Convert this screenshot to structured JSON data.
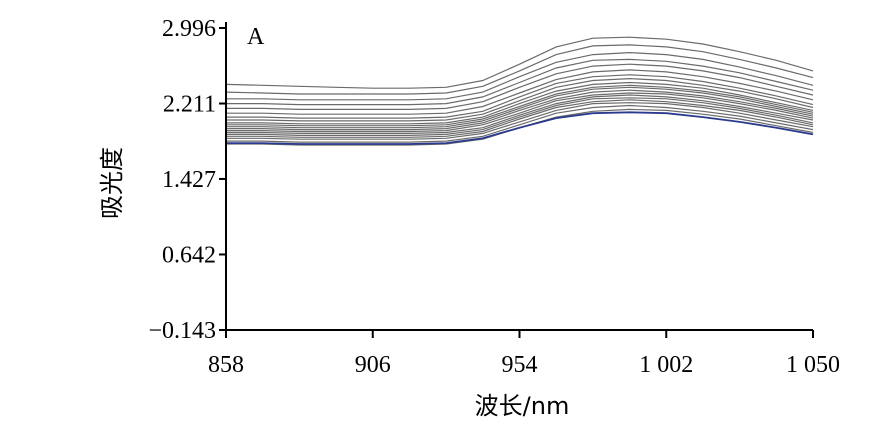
{
  "chart_data": {
    "type": "line",
    "panel_label": "A",
    "xlabel": "波长/nm",
    "ylabel": "吸光度",
    "xlim": [
      858,
      1050
    ],
    "ylim": [
      -0.143,
      2.996
    ],
    "x_ticks": [
      858,
      906,
      954,
      1002,
      1050
    ],
    "x_tick_labels": [
      "858",
      "906",
      "954",
      "1 002",
      "1 050"
    ],
    "y_ticks": [
      -0.143,
      0.642,
      1.427,
      2.211,
      2.996
    ],
    "y_tick_labels": [
      "−0.143",
      "0.642",
      "1.427",
      "2.211",
      "2.996"
    ],
    "grid": false,
    "colors": {
      "spectra": "#6b6b6b",
      "highlight": "#2b3a8f",
      "axis": "#000000"
    },
    "x": [
      858,
      870,
      882,
      894,
      906,
      918,
      930,
      942,
      954,
      966,
      978,
      990,
      1002,
      1014,
      1026,
      1038,
      1050
    ],
    "series": [
      {
        "values": [
          2.41,
          2.4,
          2.39,
          2.38,
          2.37,
          2.37,
          2.38,
          2.45,
          2.62,
          2.8,
          2.89,
          2.9,
          2.88,
          2.83,
          2.75,
          2.66,
          2.55
        ]
      },
      {
        "values": [
          2.33,
          2.32,
          2.31,
          2.31,
          2.31,
          2.31,
          2.32,
          2.39,
          2.55,
          2.72,
          2.81,
          2.82,
          2.8,
          2.75,
          2.67,
          2.58,
          2.48
        ]
      },
      {
        "values": [
          2.26,
          2.26,
          2.25,
          2.25,
          2.25,
          2.25,
          2.26,
          2.33,
          2.49,
          2.64,
          2.72,
          2.74,
          2.72,
          2.67,
          2.59,
          2.5,
          2.4
        ]
      },
      {
        "values": [
          2.21,
          2.21,
          2.2,
          2.2,
          2.2,
          2.2,
          2.21,
          2.28,
          2.43,
          2.58,
          2.66,
          2.67,
          2.65,
          2.6,
          2.53,
          2.44,
          2.35
        ]
      },
      {
        "values": [
          2.16,
          2.16,
          2.15,
          2.15,
          2.15,
          2.15,
          2.16,
          2.23,
          2.38,
          2.52,
          2.6,
          2.62,
          2.6,
          2.55,
          2.48,
          2.39,
          2.3
        ]
      },
      {
        "values": [
          2.11,
          2.11,
          2.1,
          2.1,
          2.1,
          2.1,
          2.11,
          2.18,
          2.32,
          2.46,
          2.54,
          2.56,
          2.54,
          2.49,
          2.42,
          2.34,
          2.25
        ]
      },
      {
        "values": [
          2.07,
          2.07,
          2.06,
          2.06,
          2.06,
          2.06,
          2.07,
          2.13,
          2.28,
          2.42,
          2.49,
          2.51,
          2.49,
          2.44,
          2.37,
          2.29,
          2.2
        ]
      },
      {
        "values": [
          2.04,
          2.04,
          2.03,
          2.03,
          2.03,
          2.03,
          2.04,
          2.1,
          2.24,
          2.38,
          2.45,
          2.47,
          2.45,
          2.4,
          2.34,
          2.26,
          2.17
        ]
      },
      {
        "values": [
          2.01,
          2.01,
          2.0,
          2.0,
          2.0,
          2.0,
          2.01,
          2.07,
          2.21,
          2.34,
          2.41,
          2.43,
          2.41,
          2.37,
          2.3,
          2.22,
          2.14
        ]
      },
      {
        "values": [
          1.99,
          1.99,
          1.98,
          1.98,
          1.98,
          1.98,
          1.99,
          2.05,
          2.18,
          2.31,
          2.38,
          2.4,
          2.38,
          2.34,
          2.28,
          2.2,
          2.12
        ]
      },
      {
        "values": [
          1.97,
          1.97,
          1.96,
          1.96,
          1.96,
          1.96,
          1.97,
          2.03,
          2.16,
          2.29,
          2.36,
          2.38,
          2.36,
          2.32,
          2.26,
          2.18,
          2.1
        ]
      },
      {
        "values": [
          1.95,
          1.95,
          1.94,
          1.94,
          1.94,
          1.94,
          1.95,
          2.01,
          2.14,
          2.26,
          2.33,
          2.35,
          2.33,
          2.29,
          2.23,
          2.16,
          2.08
        ]
      },
      {
        "values": [
          1.93,
          1.93,
          1.92,
          1.92,
          1.92,
          1.92,
          1.93,
          1.99,
          2.11,
          2.24,
          2.3,
          2.32,
          2.31,
          2.27,
          2.21,
          2.14,
          2.06
        ]
      },
      {
        "values": [
          1.91,
          1.91,
          1.9,
          1.9,
          1.9,
          1.9,
          1.91,
          1.96,
          2.09,
          2.21,
          2.28,
          2.3,
          2.28,
          2.24,
          2.18,
          2.11,
          2.04
        ]
      },
      {
        "values": [
          1.89,
          1.89,
          1.88,
          1.88,
          1.88,
          1.88,
          1.89,
          1.94,
          2.07,
          2.19,
          2.26,
          2.27,
          2.26,
          2.22,
          2.16,
          2.09,
          2.01
        ]
      },
      {
        "values": [
          1.87,
          1.87,
          1.86,
          1.86,
          1.86,
          1.86,
          1.87,
          1.92,
          2.05,
          2.17,
          2.23,
          2.25,
          2.23,
          2.19,
          2.14,
          2.07,
          1.99
        ]
      },
      {
        "values": [
          1.85,
          1.85,
          1.84,
          1.84,
          1.84,
          1.84,
          1.85,
          1.9,
          2.02,
          2.14,
          2.21,
          2.22,
          2.21,
          2.17,
          2.11,
          2.04,
          1.97
        ]
      },
      {
        "values": [
          1.82,
          1.82,
          1.81,
          1.81,
          1.81,
          1.81,
          1.82,
          1.87,
          1.99,
          2.11,
          2.17,
          2.19,
          2.17,
          2.13,
          2.08,
          2.01,
          1.94
        ]
      },
      {
        "values": [
          1.79,
          1.79,
          1.78,
          1.78,
          1.78,
          1.78,
          1.79,
          1.84,
          1.96,
          2.07,
          2.13,
          2.15,
          2.14,
          2.1,
          2.05,
          1.98,
          1.91
        ]
      },
      {
        "values": [
          1.8,
          1.8,
          1.79,
          1.79,
          1.79,
          1.79,
          1.8,
          1.85,
          1.96,
          2.06,
          2.11,
          2.12,
          2.11,
          2.07,
          2.02,
          1.96,
          1.89
        ],
        "highlight": true
      }
    ]
  }
}
